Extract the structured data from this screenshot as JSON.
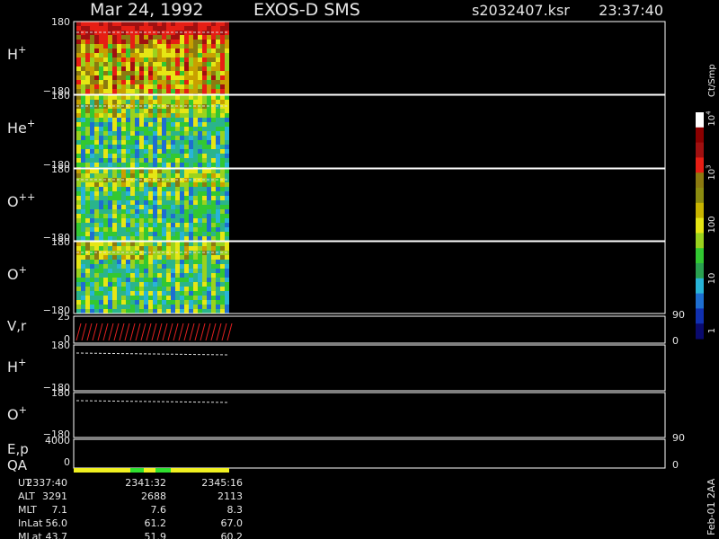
{
  "header": {
    "date": "Mar 24, 1992",
    "instrument": "EXOS-D SMS",
    "file": "s2032407.ksr",
    "time": "23:37:40"
  },
  "panels": [
    {
      "label": "H",
      "sup": "+",
      "ymax": "180",
      "ymin": "−180"
    },
    {
      "label": "He",
      "sup": "+",
      "ymax": "180",
      "ymin": "−180"
    },
    {
      "label": "O",
      "sup": "++",
      "ymax": "180",
      "ymin": "−180"
    },
    {
      "label": "O",
      "sup": "+",
      "ymax": "180",
      "ymin": "−180"
    }
  ],
  "vr": {
    "label": "V,r",
    "ymax": "25",
    "ymin": "0",
    "right_max": "90",
    "right_min": "0"
  },
  "lower_panels": [
    {
      "label": "H",
      "sup": "+",
      "ymax": "180",
      "ymin": "−180"
    },
    {
      "label": "O",
      "sup": "+",
      "ymax": "180",
      "ymin": "−180"
    }
  ],
  "ep": {
    "label": "E,p",
    "ymax": "4000",
    "ymin": "0",
    "right_max": "90",
    "right_min": "0"
  },
  "qa": "QA",
  "colorbar": {
    "unit": "Ct/Smp",
    "ticks": [
      {
        "base": "10",
        "sup": "4"
      },
      {
        "base": "10",
        "sup": "3"
      },
      {
        "base": "100"
      },
      {
        "base": "10"
      },
      {
        "base": "1"
      }
    ]
  },
  "table": {
    "rows": [
      [
        "UT",
        "2337:40",
        "2341:32",
        "2345:16"
      ],
      [
        "ALT",
        "3291",
        "2688",
        "2113"
      ],
      [
        "MLT",
        "7.1",
        "7.6",
        "8.3"
      ],
      [
        "InLat",
        "56.0",
        "61.2",
        "67.0"
      ],
      [
        "MLat",
        "43.7",
        "51.9",
        "60.2"
      ]
    ]
  },
  "footer": "Feb-01 2AA"
}
